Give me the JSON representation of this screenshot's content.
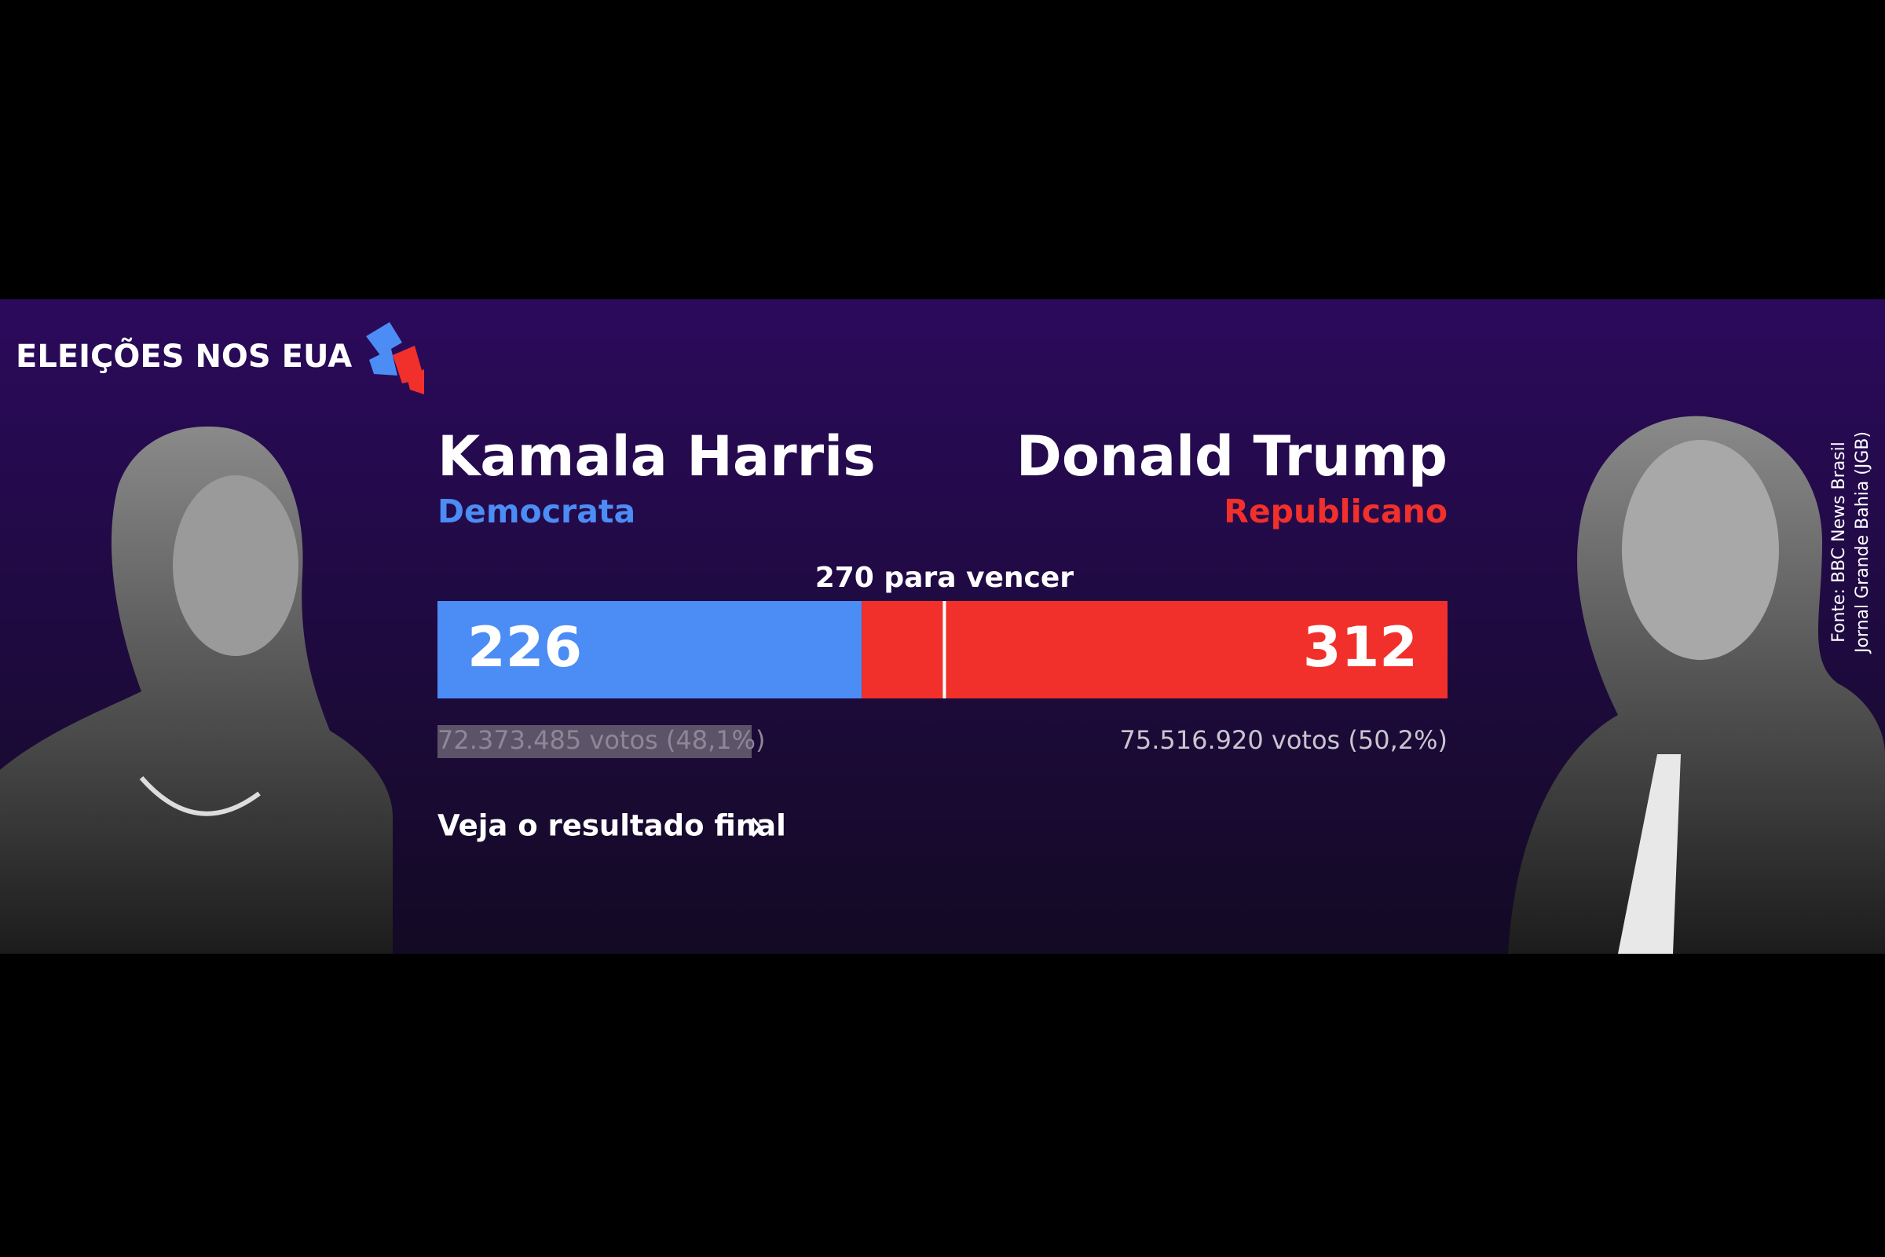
{
  "header": {
    "title": "ELEIÇÕES NOS EUA"
  },
  "candidates": [
    {
      "name": "Kamala Harris",
      "party": "Democrata",
      "electoral_votes": 226,
      "popular_votes": "72.373.485 votos (48,1%)",
      "color": "#4c8cf5"
    },
    {
      "name": "Donald Trump",
      "party": "Republicano",
      "electoral_votes": 312,
      "popular_votes": "75.516.920 votos (50,2%)",
      "color": "#f2302b"
    }
  ],
  "threshold": {
    "value": 270,
    "label": "270 para vencer"
  },
  "link": "Veja o resultado final",
  "source": [
    "Fonte: BBC News Brasil",
    "Jornal Grande Bahia (JGB)"
  ]
}
